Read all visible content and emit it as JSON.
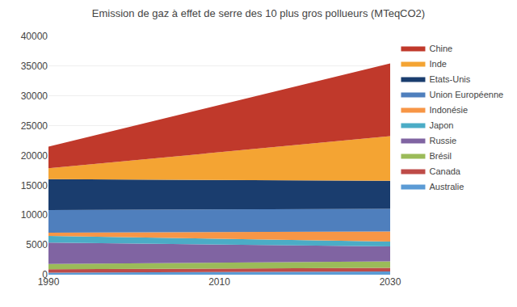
{
  "chart_data": {
    "type": "area",
    "stacked": true,
    "title": "Emission de gaz à effet de serre des 10 plus gros pollueurs (MTeqCO2)",
    "x": [
      1990,
      2030
    ],
    "series": [
      {
        "name": "Australie",
        "color": "#5b9bd5",
        "values": [
          350,
          550
        ]
      },
      {
        "name": "Canada",
        "color": "#be4b48",
        "values": [
          550,
          600
        ]
      },
      {
        "name": "Brésil",
        "color": "#9bbb59",
        "values": [
          900,
          1100
        ]
      },
      {
        "name": "Russie",
        "color": "#8064a2",
        "values": [
          3600,
          2500
        ]
      },
      {
        "name": "Japon",
        "color": "#4bacc6",
        "values": [
          1100,
          800
        ]
      },
      {
        "name": "Indonésie",
        "color": "#f79646",
        "values": [
          550,
          1700
        ]
      },
      {
        "name": "Union Européenne",
        "color": "#4f7fbd",
        "values": [
          3800,
          3800
        ]
      },
      {
        "name": "Etats-Unis",
        "color": "#1a3d6e",
        "values": [
          5200,
          4700
        ]
      },
      {
        "name": "Inde",
        "color": "#f4a433",
        "values": [
          1800,
          7500
        ]
      },
      {
        "name": "Chine",
        "color": "#c0392b",
        "values": [
          3650,
          12200
        ]
      }
    ],
    "xlim": [
      1990,
      2030
    ],
    "xticks": [
      1990,
      2010,
      2030
    ],
    "ylim": [
      0,
      40000
    ],
    "yticks": [
      0,
      5000,
      10000,
      15000,
      20000,
      25000,
      30000,
      35000,
      40000
    ],
    "grid": "y",
    "legend": "right"
  }
}
